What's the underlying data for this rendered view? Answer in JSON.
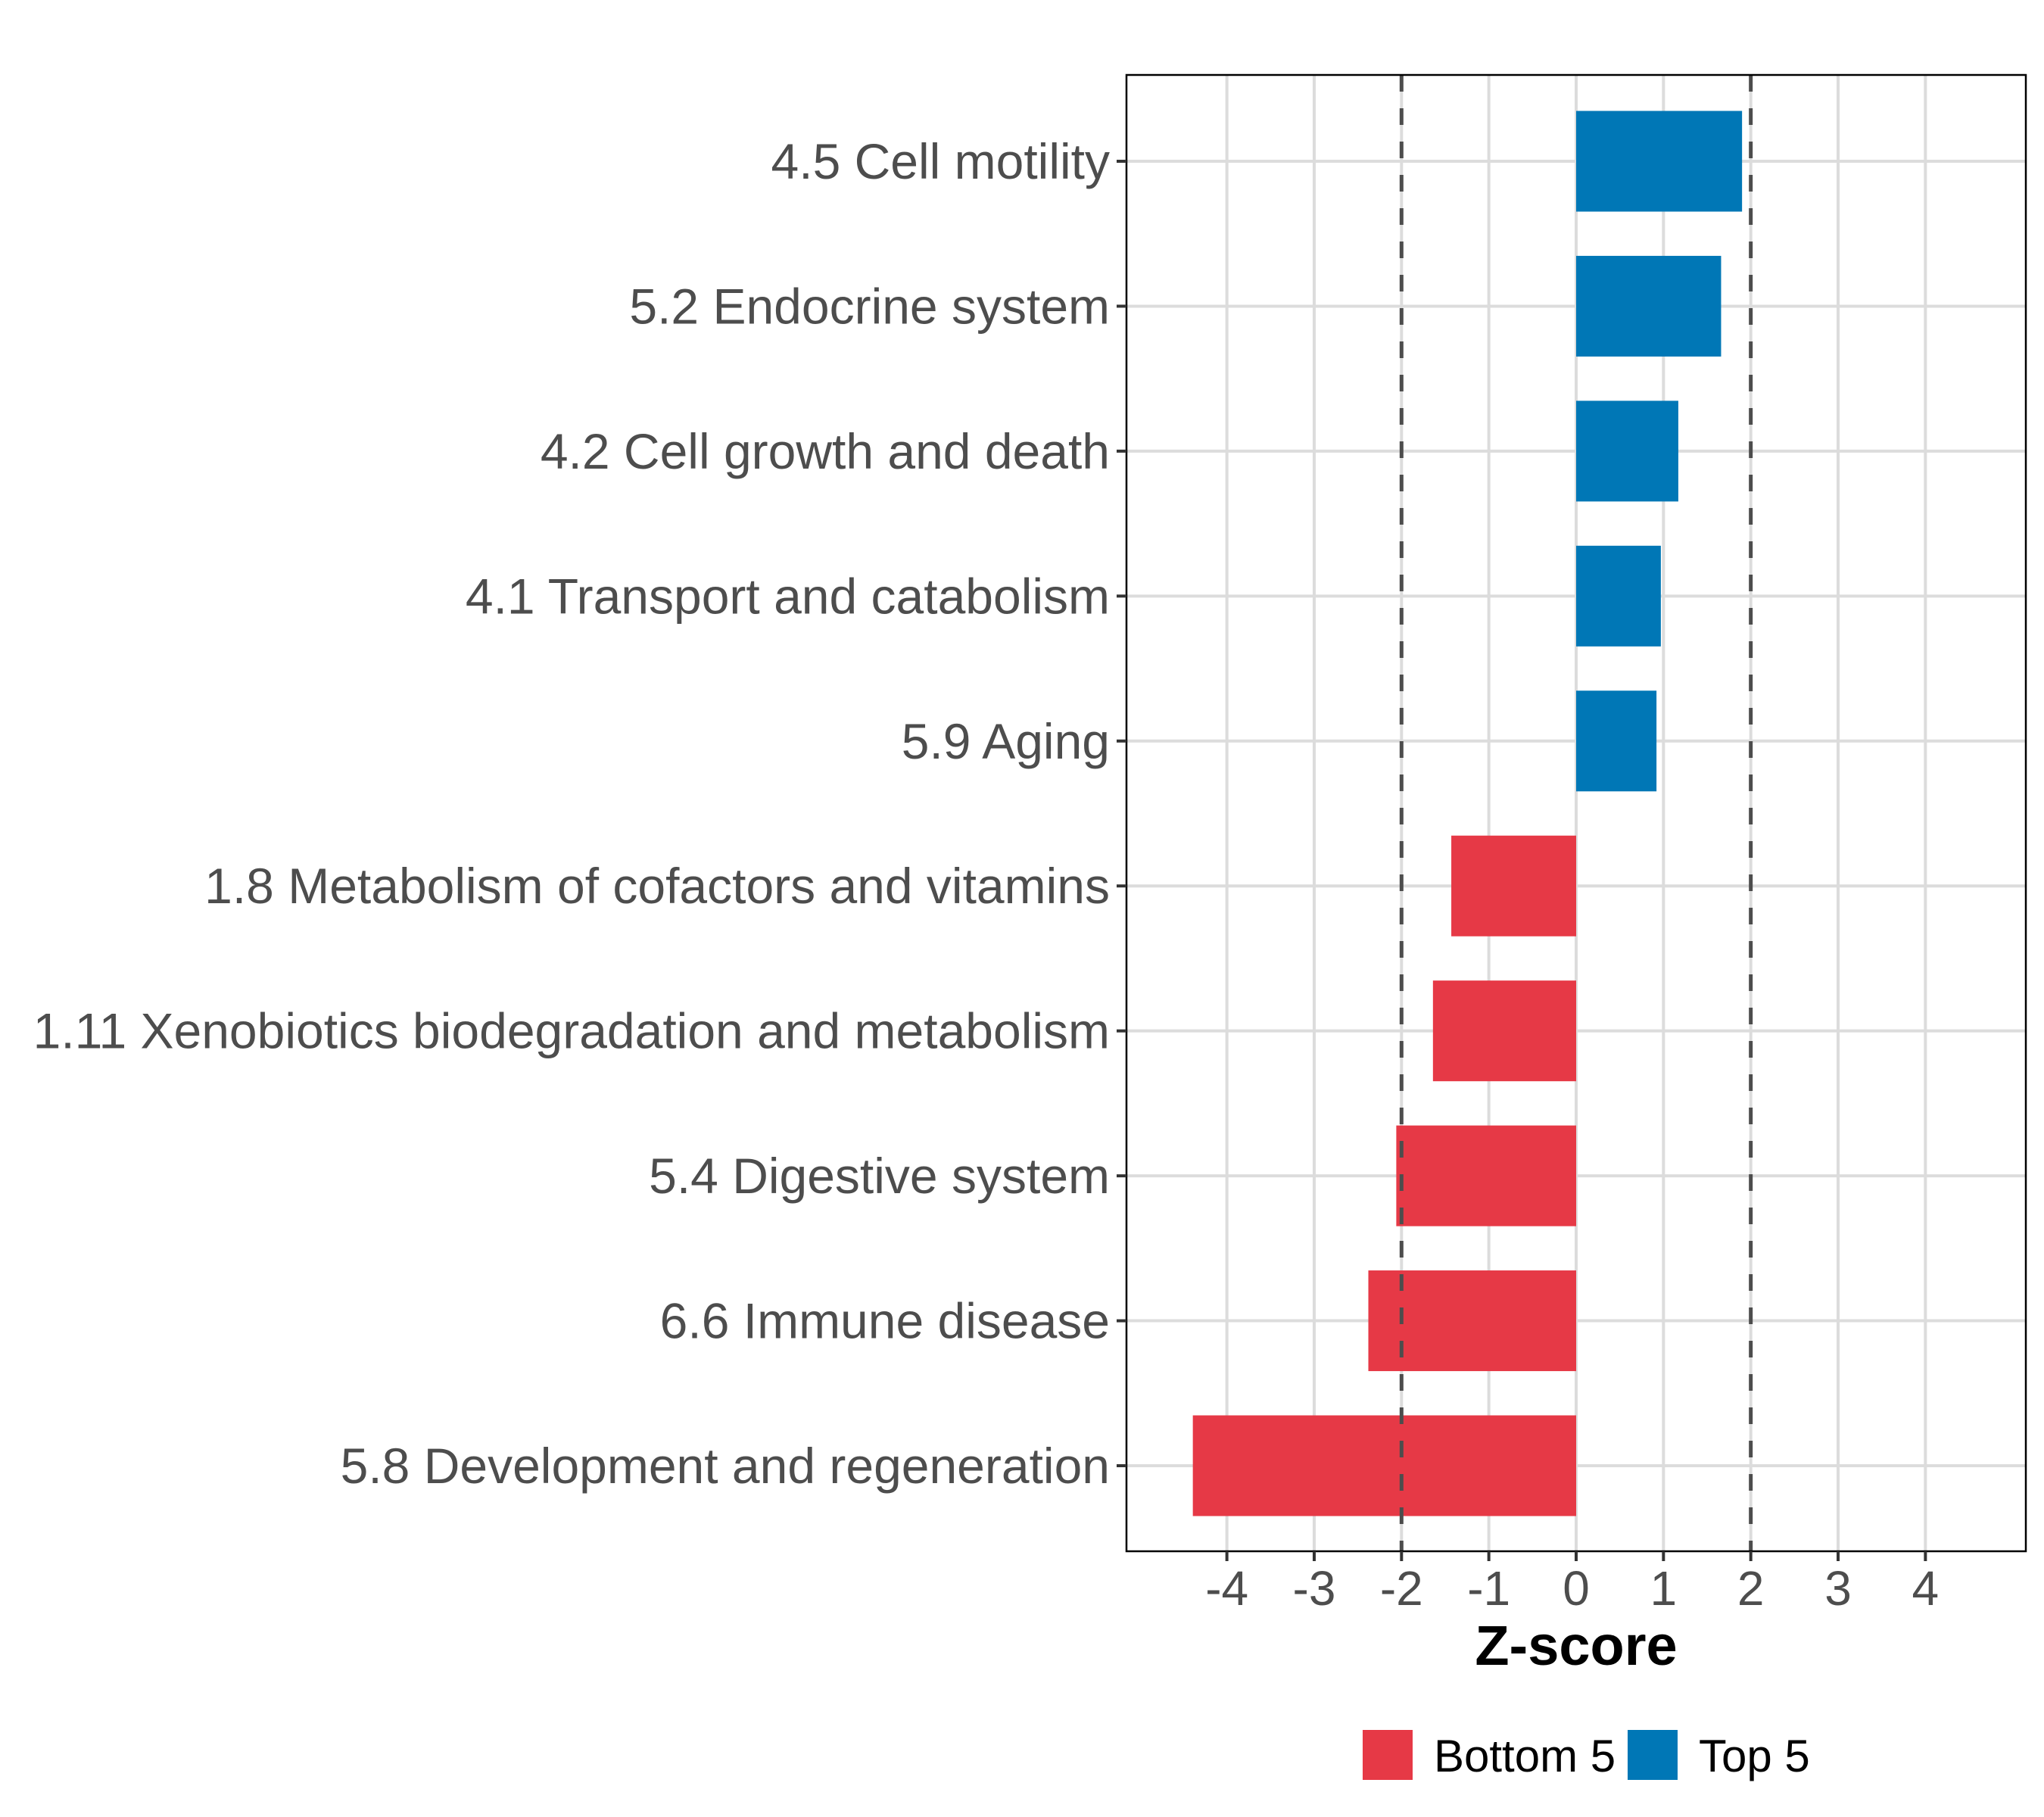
{
  "chart_data": {
    "type": "bar",
    "orientation": "horizontal",
    "title": "",
    "xlabel": "Z-score",
    "ylabel": "",
    "xlim": [
      -5.15,
      5.15
    ],
    "xticks": [
      -4,
      -3,
      -2,
      -1,
      0,
      1,
      2,
      3,
      4
    ],
    "xtick_labels": [
      "-4",
      "-3",
      "-2",
      "-1",
      "0",
      "1",
      "2",
      "3",
      "4"
    ],
    "grid": true,
    "reference_lines": [
      -2,
      2
    ],
    "categories": [
      "4.5 Cell motility",
      "5.2 Endocrine system",
      "4.2 Cell growth and death",
      "4.1 Transport and catabolism",
      "5.9 Aging",
      "1.8 Metabolism of cofactors and vitamins",
      "1.11 Xenobiotics biodegradation and metabolism",
      "5.4 Digestive system",
      "6.6 Immune disease",
      "5.8 Development and regeneration"
    ],
    "values": [
      1.9,
      1.66,
      1.17,
      0.97,
      0.92,
      -1.43,
      -1.64,
      -2.06,
      -2.38,
      -4.39
    ],
    "groups": [
      "Top 5",
      "Top 5",
      "Top 5",
      "Top 5",
      "Top 5",
      "Bottom 5",
      "Bottom 5",
      "Bottom 5",
      "Bottom 5",
      "Bottom 5"
    ],
    "legend": {
      "position": "bottom",
      "entries": [
        {
          "label": "Bottom 5",
          "color": "#E63946"
        },
        {
          "label": "Top 5",
          "color": "#0077B6"
        }
      ]
    }
  }
}
